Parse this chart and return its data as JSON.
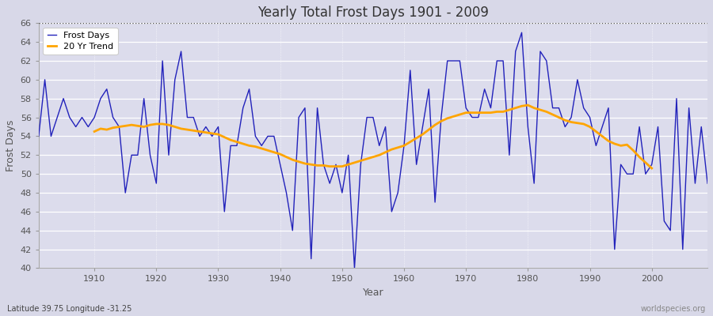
{
  "title": "Yearly Total Frost Days 1901 - 2009",
  "xlabel": "Year",
  "ylabel": "Frost Days",
  "subtitle_left": "Latitude 39.75 Longitude -31.25",
  "subtitle_right": "worldspecies.org",
  "ylim": [
    40,
    66
  ],
  "yticks": [
    40,
    42,
    44,
    46,
    48,
    50,
    52,
    54,
    56,
    58,
    60,
    62,
    64,
    66
  ],
  "xticks": [
    1910,
    1920,
    1930,
    1940,
    1950,
    1960,
    1970,
    1980,
    1990,
    2000
  ],
  "hline_y": 66,
  "bg_color": "#d8d8e8",
  "plot_bg_color": "#dcdcec",
  "line_color": "#2222bb",
  "trend_color": "#ffa500",
  "years": [
    1901,
    1902,
    1903,
    1904,
    1905,
    1906,
    1907,
    1908,
    1909,
    1910,
    1911,
    1912,
    1913,
    1914,
    1915,
    1916,
    1917,
    1918,
    1919,
    1920,
    1921,
    1922,
    1923,
    1924,
    1925,
    1926,
    1927,
    1928,
    1929,
    1930,
    1931,
    1932,
    1933,
    1934,
    1935,
    1936,
    1937,
    1938,
    1939,
    1940,
    1941,
    1942,
    1943,
    1944,
    1945,
    1946,
    1947,
    1948,
    1949,
    1950,
    1951,
    1952,
    1953,
    1954,
    1955,
    1956,
    1957,
    1958,
    1959,
    1960,
    1961,
    1962,
    1963,
    1964,
    1965,
    1966,
    1967,
    1968,
    1969,
    1970,
    1971,
    1972,
    1973,
    1974,
    1975,
    1976,
    1977,
    1978,
    1979,
    1980,
    1981,
    1982,
    1983,
    1984,
    1985,
    1986,
    1987,
    1988,
    1989,
    1990,
    1991,
    1992,
    1993,
    1994,
    1995,
    1996,
    1997,
    1998,
    1999,
    2000,
    2001,
    2002,
    2003,
    2004,
    2005,
    2006,
    2007,
    2008,
    2009
  ],
  "frost_days": [
    54,
    60,
    54,
    56,
    58,
    56,
    55,
    56,
    55,
    56,
    58,
    59,
    56,
    55,
    48,
    52,
    52,
    58,
    52,
    49,
    62,
    52,
    60,
    63,
    56,
    56,
    54,
    55,
    54,
    55,
    46,
    53,
    53,
    57,
    59,
    54,
    53,
    54,
    54,
    51,
    48,
    44,
    56,
    57,
    41,
    57,
    51,
    49,
    51,
    48,
    52,
    40,
    51,
    56,
    56,
    53,
    55,
    46,
    48,
    53,
    61,
    51,
    55,
    59,
    47,
    56,
    62,
    62,
    62,
    57,
    56,
    56,
    59,
    57,
    62,
    62,
    52,
    63,
    65,
    55,
    49,
    63,
    62,
    57,
    57,
    55,
    56,
    60,
    57,
    56,
    53,
    55,
    57,
    42,
    51,
    50,
    50,
    55,
    50,
    51,
    55,
    45,
    44,
    58,
    42,
    57,
    49,
    55,
    49
  ],
  "trend_years": [
    1910,
    1911,
    1912,
    1913,
    1914,
    1915,
    1916,
    1917,
    1918,
    1919,
    1920,
    1921,
    1922,
    1923,
    1924,
    1925,
    1926,
    1927,
    1928,
    1929,
    1930,
    1931,
    1932,
    1933,
    1934,
    1935,
    1936,
    1937,
    1938,
    1939,
    1940,
    1941,
    1942,
    1943,
    1944,
    1945,
    1946,
    1947,
    1948,
    1949,
    1950,
    1951,
    1952,
    1953,
    1954,
    1955,
    1956,
    1957,
    1958,
    1959,
    1960,
    1961,
    1962,
    1963,
    1964,
    1965,
    1966,
    1967,
    1968,
    1969,
    1970,
    1971,
    1972,
    1973,
    1974,
    1975,
    1976,
    1977,
    1978,
    1979,
    1980,
    1981,
    1982,
    1983,
    1984,
    1985,
    1986,
    1987,
    1988,
    1989,
    1990,
    1991,
    1992,
    1993,
    1994,
    1995,
    1996,
    1997,
    1998,
    1999,
    2000
  ],
  "trend_values": [
    54.5,
    54.8,
    54.7,
    54.9,
    55.0,
    55.1,
    55.2,
    55.1,
    55.0,
    55.2,
    55.3,
    55.3,
    55.2,
    55.0,
    54.8,
    54.7,
    54.6,
    54.5,
    54.4,
    54.3,
    54.2,
    53.9,
    53.6,
    53.4,
    53.2,
    53.0,
    52.9,
    52.7,
    52.5,
    52.3,
    52.1,
    51.8,
    51.5,
    51.3,
    51.1,
    51.0,
    50.9,
    50.9,
    50.8,
    50.8,
    50.8,
    51.0,
    51.2,
    51.4,
    51.6,
    51.8,
    52.0,
    52.3,
    52.6,
    52.8,
    53.0,
    53.4,
    53.8,
    54.2,
    54.7,
    55.2,
    55.6,
    55.9,
    56.1,
    56.3,
    56.5,
    56.5,
    56.5,
    56.5,
    56.5,
    56.6,
    56.6,
    56.8,
    57.0,
    57.2,
    57.3,
    57.0,
    56.8,
    56.6,
    56.3,
    56.0,
    55.7,
    55.5,
    55.4,
    55.3,
    55.0,
    54.5,
    54.0,
    53.5,
    53.2,
    53.0,
    53.1,
    52.5,
    51.8,
    51.2,
    50.6
  ]
}
